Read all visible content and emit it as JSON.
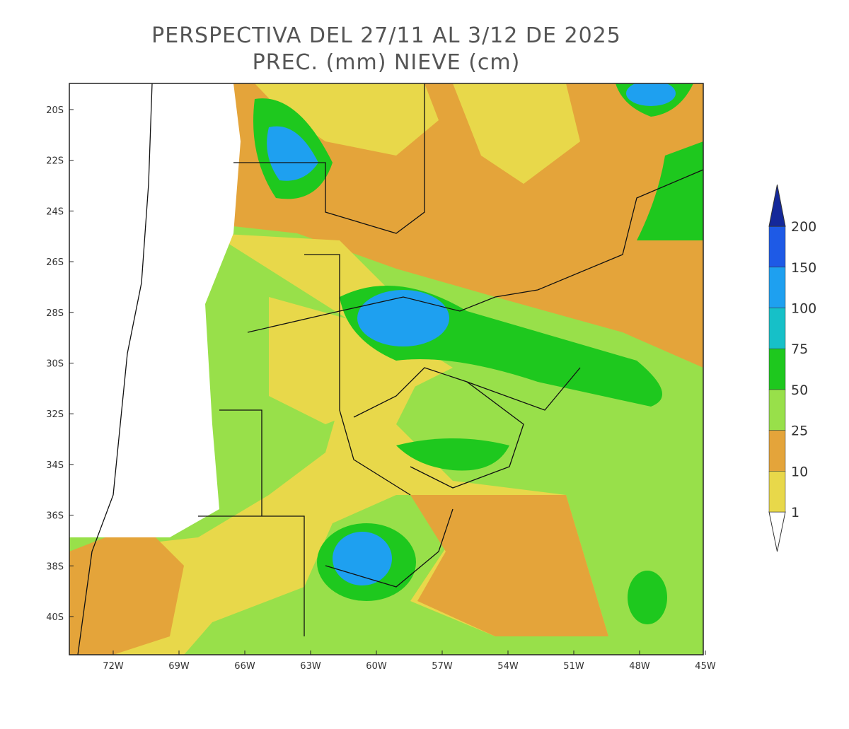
{
  "title": [
    "PERSPECTIVA DEL 27/11 AL 3/12 DE 2025",
    "PREC. (mm) NIEVE (cm)"
  ],
  "lat_labels": [
    "20S",
    "22S",
    "24S",
    "26S",
    "28S",
    "30S",
    "32S",
    "34S",
    "36S",
    "38S",
    "40S"
  ],
  "lon_labels": [
    "72W",
    "69W",
    "66W",
    "63W",
    "60W",
    "57W",
    "54W",
    "51W",
    "48W",
    "45W"
  ],
  "legend": {
    "levels": [
      1,
      10,
      25,
      50,
      75,
      100,
      150,
      200
    ],
    "colors": [
      "#ffffff",
      "#e8d84a",
      "#e4a43a",
      "#98e04a",
      "#1ec81e",
      "#16c0c8",
      "#1ea0f0",
      "#1e5ae6",
      "#14289a"
    ]
  }
}
